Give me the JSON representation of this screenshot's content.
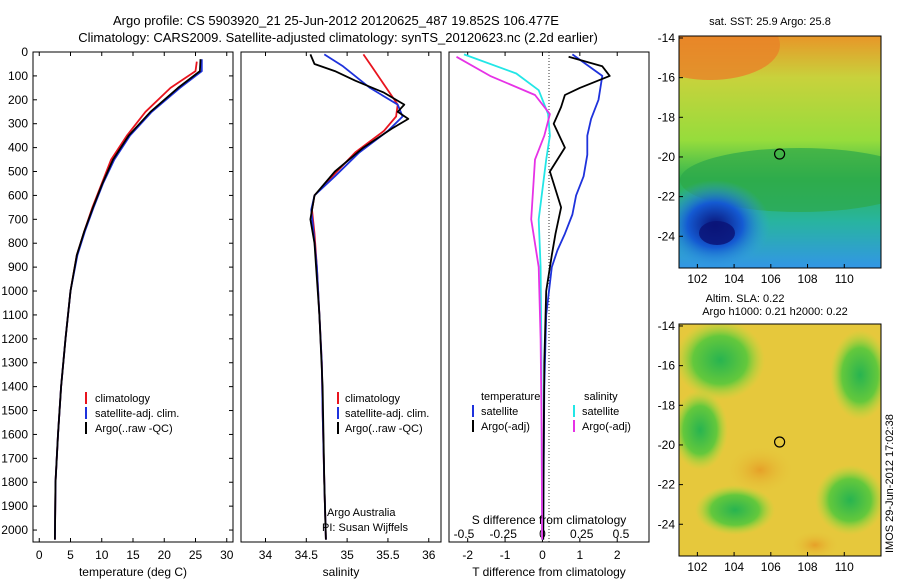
{
  "title_line1": "Argo profile: CS 5903920_21 25-Jun-2012 20120625_487 19.852S 106.477E",
  "title_line2": "Climatology: CARS2009. Satellite-adjusted climatology: synTS_20120623.nc (2.2d earlier)",
  "colors": {
    "climatology": "#e8141e",
    "satellite": "#1e32dc",
    "argo": "#000000",
    "sal_satellite": "#22e6e6",
    "sal_argo": "#e632e6"
  },
  "chart_data": [
    {
      "type": "line",
      "panel": "temperature",
      "xlabel": "temperature (deg C)",
      "ylabel": "",
      "xlim": [
        -1,
        31
      ],
      "ylim": [
        2050,
        0
      ],
      "xticks": [
        0,
        5,
        10,
        15,
        20,
        25,
        30
      ],
      "xtick_labels": [
        "0",
        "5",
        "10",
        "15",
        "20",
        "25",
        "30"
      ],
      "yticks": [
        0,
        100,
        200,
        300,
        400,
        500,
        600,
        700,
        800,
        900,
        1000,
        1100,
        1200,
        1300,
        1400,
        1500,
        1600,
        1700,
        1800,
        1900,
        2000
      ],
      "ytick_labels": [
        "0",
        "100",
        "200",
        "300",
        "400",
        "500",
        "600",
        "700",
        "800",
        "900",
        "1000",
        "1100",
        "1200",
        "1300",
        "1400",
        "1500",
        "1600",
        "1700",
        "1800",
        "1900",
        "2000"
      ],
      "legend": [
        "climatology",
        "satellite-adj. clim.",
        "Argo(..raw -QC)"
      ],
      "series": [
        {
          "name": "climatology",
          "color": "#e8141e",
          "x": [
            25.2,
            25.0,
            21,
            17,
            14,
            11.5,
            10,
            8.5,
            7.2,
            6,
            5,
            4.2,
            3.5,
            3.0,
            2.6,
            2.5
          ],
          "y": [
            40,
            80,
            150,
            250,
            350,
            450,
            550,
            650,
            750,
            850,
            1000,
            1200,
            1400,
            1600,
            1800,
            2040
          ]
        },
        {
          "name": "satellite-adj. clim.",
          "color": "#1e32dc",
          "x": [
            26,
            26,
            22.5,
            18,
            14.5,
            12,
            10.2,
            8.7,
            7.3,
            6.1,
            5,
            4.2,
            3.5,
            3.0,
            2.6,
            2.5
          ],
          "y": [
            30,
            80,
            150,
            250,
            350,
            450,
            550,
            650,
            750,
            850,
            1000,
            1200,
            1400,
            1600,
            1800,
            2040
          ]
        },
        {
          "name": "Argo(..raw -QC)",
          "color": "#000000",
          "x": [
            25.8,
            25.7,
            22.2,
            17.8,
            14.3,
            11.8,
            10.1,
            8.6,
            7.2,
            6.0,
            5.0,
            4.2,
            3.5,
            3.0,
            2.6,
            2.5
          ],
          "y": [
            30,
            80,
            150,
            250,
            350,
            450,
            550,
            650,
            750,
            850,
            1000,
            1200,
            1400,
            1600,
            1800,
            2040
          ]
        }
      ]
    },
    {
      "type": "line",
      "panel": "salinity",
      "xlabel": "salinity",
      "xlim": [
        33.7,
        36.15
      ],
      "ylim": [
        2050,
        0
      ],
      "xticks": [
        34,
        34.5,
        35,
        35.5,
        36
      ],
      "xtick_labels": [
        "34",
        "34.5",
        "35",
        "35.5",
        "36"
      ],
      "legend": [
        "climatology",
        "satellite-adj. clim.",
        "Argo(..raw -QC)"
      ],
      "annotation": [
        "Argo Australia",
        "PI: Susan Wijffels"
      ],
      "series": [
        {
          "name": "climatology",
          "color": "#e8141e",
          "x": [
            35.2,
            35.3,
            35.48,
            35.62,
            35.6,
            35.45,
            35.1,
            34.82,
            34.6,
            34.57,
            34.6,
            34.63,
            34.66,
            34.69,
            34.7,
            34.72,
            34.74
          ],
          "y": [
            10,
            60,
            150,
            220,
            270,
            330,
            420,
            520,
            600,
            660,
            760,
            900,
            1100,
            1300,
            1500,
            1800,
            2040
          ]
        },
        {
          "name": "satellite-adj. clim.",
          "color": "#1e32dc",
          "x": [
            34.72,
            34.95,
            35.28,
            35.62,
            35.68,
            35.5,
            35.15,
            34.85,
            34.6,
            34.56,
            34.59,
            34.63,
            34.66,
            34.69,
            34.7,
            34.72,
            34.74
          ],
          "y": [
            10,
            60,
            150,
            220,
            270,
            330,
            420,
            520,
            600,
            660,
            760,
            900,
            1100,
            1300,
            1500,
            1800,
            2040
          ]
        },
        {
          "name": "Argo(..raw -QC)",
          "color": "#000000",
          "x": [
            34.55,
            34.6,
            34.85,
            35.1,
            35.45,
            35.7,
            35.62,
            35.75,
            35.55,
            35.2,
            34.85,
            34.6,
            34.57,
            34.55,
            34.6,
            34.62,
            34.66,
            34.7,
            34.72,
            34.74
          ],
          "y": [
            10,
            50,
            80,
            120,
            170,
            220,
            250,
            280,
            320,
            400,
            500,
            600,
            660,
            700,
            800,
            900,
            1100,
            1400,
            1800,
            2040
          ]
        }
      ]
    },
    {
      "type": "line",
      "panel": "differences",
      "xlabel": "T difference from climatology",
      "xlabel_top": "S difference from climatology",
      "xlim": [
        -2.5,
        2.85
      ],
      "ylim": [
        2050,
        0
      ],
      "xticks": [
        -2,
        -1,
        0,
        1,
        2
      ],
      "xtick_labels": [
        "-2",
        "-1",
        "0",
        "1",
        "2"
      ],
      "xticks_s": [
        -0.5,
        -0.25,
        0,
        0.25,
        0.5
      ],
      "xtick_labels_s": [
        "-0.5",
        "-0.25",
        "0",
        "0.25",
        "0.5"
      ],
      "legend_left_title": "temperature",
      "legend_right_title": "salinity",
      "legend_left": [
        "satellite",
        "Argo(-adj)"
      ],
      "legend_right": [
        "satellite",
        "Argo(-adj)"
      ],
      "series": [
        {
          "name": "satellite",
          "group": "temperature",
          "color": "#1e32dc",
          "x": [
            0.8,
            1.6,
            1.5,
            1.3,
            1.2,
            1.2,
            1.1,
            0.9,
            0.8,
            0.6,
            0.4,
            0.25,
            0.1,
            0.05,
            0.03,
            0.02
          ],
          "y": [
            10,
            100,
            200,
            280,
            350,
            430,
            520,
            600,
            680,
            760,
            830,
            900,
            1100,
            1400,
            1800,
            2040
          ]
        },
        {
          "name": "Argo(-adj)",
          "group": "temperature",
          "color": "#000000",
          "x": [
            0.7,
            1.6,
            1.8,
            1.0,
            0.6,
            0.5,
            0.3,
            0.6,
            0.2,
            0.5,
            0.35,
            0.25,
            0.1,
            0.05,
            0.03,
            0.02
          ],
          "y": [
            20,
            60,
            100,
            150,
            180,
            230,
            300,
            400,
            500,
            650,
            760,
            850,
            1000,
            1300,
            1700,
            2040
          ]
        },
        {
          "name": "satellite",
          "group": "salinity",
          "color": "#22e6e6",
          "x": [
            -2.1,
            -0.7,
            -0.1,
            0.15,
            0.2,
            0.1,
            -0.1,
            -0.05,
            -0.03,
            -0.02,
            -0.01
          ],
          "y": [
            10,
            90,
            160,
            260,
            350,
            450,
            700,
            900,
            1200,
            1600,
            2040
          ]
        },
        {
          "name": "Argo(-adj)",
          "group": "salinity",
          "color": "#e632e6",
          "x": [
            -2.3,
            -1.4,
            -0.2,
            0.2,
            0.05,
            -0.2,
            -0.3,
            -0.1,
            -0.05,
            -0.02,
            -0.01
          ],
          "y": [
            20,
            100,
            180,
            260,
            350,
            450,
            700,
            900,
            1200,
            1600,
            2040
          ]
        }
      ]
    },
    {
      "type": "heatmap",
      "panel": "sst_map",
      "title": "sat. SST: 25.9 Argo: 25.8",
      "xlim": [
        101,
        112
      ],
      "ylim": [
        -25.6,
        -13.9
      ],
      "xticks": [
        102,
        104,
        106,
        108,
        110
      ],
      "xtick_labels": [
        "102",
        "104",
        "106",
        "108",
        "110"
      ],
      "yticks": [
        -14,
        -16,
        -18,
        -20,
        -22,
        -24
      ],
      "ytick_labels": [
        "-14",
        "-16",
        "-18",
        "-20",
        "-22",
        "-24"
      ],
      "marker": {
        "lon": 106.477,
        "lat": -19.852
      }
    },
    {
      "type": "heatmap",
      "panel": "sla_map",
      "title_line1": "Altim. SLA: 0.22",
      "title_line2": "Argo h1000: 0.21 h2000: 0.22",
      "xlim": [
        101,
        112
      ],
      "ylim": [
        -25.6,
        -13.9
      ],
      "xticks": [
        102,
        104,
        106,
        108,
        110
      ],
      "xtick_labels": [
        "102",
        "104",
        "106",
        "108",
        "110"
      ],
      "yticks": [
        -14,
        -16,
        -18,
        -20,
        -22,
        -24
      ],
      "ytick_labels": [
        "-14",
        "-16",
        "-18",
        "-20",
        "-22",
        "-24"
      ],
      "marker": {
        "lon": 106.477,
        "lat": -19.852
      }
    }
  ],
  "footer_stamp": "IMOS 29-Jun-2012 17:02:38"
}
